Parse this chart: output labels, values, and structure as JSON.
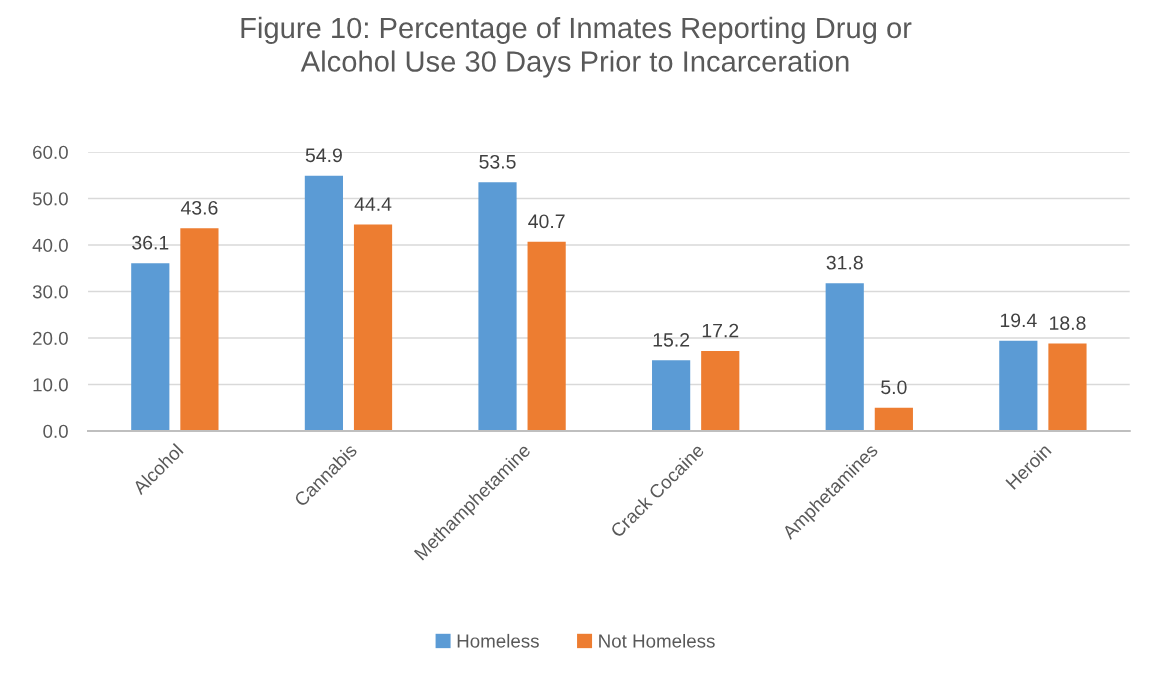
{
  "chart_data": {
    "type": "bar",
    "title": "Figure 10: Percentage of Inmates Reporting Drug or\nAlcohol Use 30 Days Prior to Incarceration",
    "categories": [
      "Alcohol",
      "Cannabis",
      "Methamphetamine",
      "Crack Cocaine",
      "Amphetamines",
      "Heroin"
    ],
    "series": [
      {
        "name": "Homeless",
        "color": "#5b9bd5",
        "values": [
          36.1,
          54.9,
          53.5,
          15.2,
          31.8,
          19.4
        ],
        "value_labels": [
          "36.1",
          "54.9",
          "53.5",
          "15.2",
          "31.8",
          "19.4"
        ]
      },
      {
        "name": "Not Homeless",
        "color": "#ed7d31",
        "values": [
          43.6,
          44.4,
          40.7,
          17.2,
          5.0,
          18.8
        ],
        "value_labels": [
          "43.6",
          "44.4",
          "40.7",
          "17.2",
          "5.0",
          "18.8"
        ]
      }
    ],
    "ylim": [
      0,
      60
    ],
    "yticks": [
      {
        "value": 0,
        "label": "0.0"
      },
      {
        "value": 10,
        "label": "10.0"
      },
      {
        "value": 20,
        "label": "20.0"
      },
      {
        "value": 30,
        "label": "30.0"
      },
      {
        "value": 40,
        "label": "40.0"
      },
      {
        "value": 50,
        "label": "50.0"
      },
      {
        "value": 60,
        "label": "60.0"
      }
    ],
    "grid": "y",
    "legend": "bottom"
  }
}
